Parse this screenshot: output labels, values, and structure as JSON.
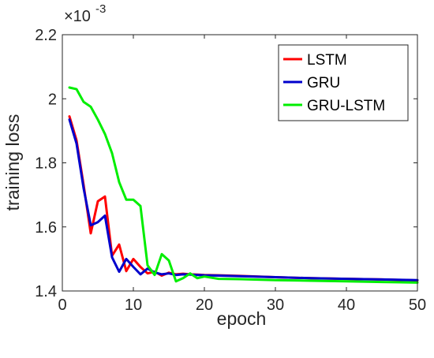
{
  "chart_data": {
    "type": "line",
    "title": "",
    "xlabel": "epoch",
    "ylabel": "training loss",
    "xlim": [
      0,
      50
    ],
    "ylim": [
      1.4,
      2.2
    ],
    "xticks": [
      0,
      10,
      20,
      30,
      40,
      50
    ],
    "yticks": [
      1.4,
      1.6,
      1.8,
      2,
      2.2
    ],
    "x_tick_labels": [
      "0",
      "10",
      "20",
      "30",
      "40",
      "50"
    ],
    "y_tick_labels": [
      "1.4",
      "1.6",
      "1.8",
      "2",
      "2.2"
    ],
    "y_multiplier_base": "×10",
    "y_multiplier_exp": "-3",
    "grid": false,
    "legend_position": "top-right",
    "x": [
      1,
      2,
      3,
      4,
      5,
      6,
      7,
      8,
      9,
      10,
      11,
      12,
      13,
      14,
      15,
      16,
      17,
      18,
      19,
      20,
      22,
      25,
      30,
      35,
      40,
      45,
      50
    ],
    "series": [
      {
        "name": "LSTM",
        "color": "#ff0000",
        "values": [
          1.945,
          1.87,
          1.73,
          1.58,
          1.68,
          1.695,
          1.51,
          1.545,
          1.462,
          1.5,
          1.475,
          1.455,
          1.46,
          1.448,
          1.457,
          1.452,
          1.454,
          1.452,
          1.451,
          1.45,
          1.449,
          1.447,
          1.443,
          1.44,
          1.438,
          1.436,
          1.433
        ]
      },
      {
        "name": "GRU",
        "color": "#0000cc",
        "values": [
          1.935,
          1.86,
          1.72,
          1.605,
          1.615,
          1.635,
          1.505,
          1.46,
          1.5,
          1.475,
          1.452,
          1.47,
          1.458,
          1.452,
          1.455,
          1.45,
          1.452,
          1.451,
          1.45,
          1.449,
          1.448,
          1.446,
          1.443,
          1.44,
          1.438,
          1.436,
          1.434
        ]
      },
      {
        "name": "GRU-LSTM",
        "color": "#00ee00",
        "values": [
          2.035,
          2.03,
          1.99,
          1.975,
          1.935,
          1.89,
          1.83,
          1.74,
          1.685,
          1.685,
          1.665,
          1.48,
          1.45,
          1.515,
          1.495,
          1.43,
          1.44,
          1.455,
          1.44,
          1.445,
          1.438,
          1.437,
          1.434,
          1.432,
          1.43,
          1.428,
          1.426
        ]
      }
    ]
  }
}
